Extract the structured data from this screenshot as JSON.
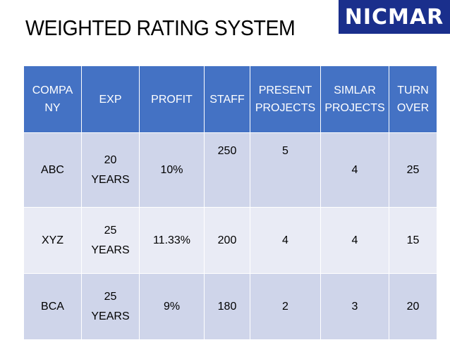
{
  "title": "WEIGHTED RATING SYSTEM",
  "logo_text": "NICMAR",
  "table": {
    "headers": [
      "COMPA NY",
      "EXP",
      "PROFIT",
      "STAFF",
      "PRESENT PROJECTS",
      "SIMLAR PROJECTS",
      "TURN OVER"
    ],
    "rows": [
      [
        "ABC",
        "20 YEARS",
        "10%",
        "250",
        "5",
        "4",
        "25"
      ],
      [
        "XYZ",
        "25 YEARS",
        "11.33%",
        "200",
        "4",
        "4",
        "15"
      ],
      [
        "BCA",
        "25 YEARS",
        "9%",
        "180",
        "2",
        "3",
        "20"
      ]
    ]
  },
  "colors": {
    "header_bg": "#4472c4",
    "row_dark": "#cfd5ea",
    "row_light": "#e9ebf5",
    "logo_bg": "#1a2f8c"
  }
}
